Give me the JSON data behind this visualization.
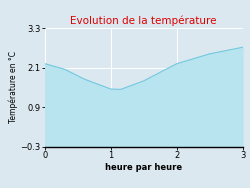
{
  "title": "Evolution de la température",
  "xlabel": "heure par heure",
  "ylabel": "Température en °C",
  "xlim": [
    0,
    3
  ],
  "ylim": [
    -0.3,
    3.3
  ],
  "yticks": [
    -0.3,
    0.9,
    2.1,
    3.3
  ],
  "xticks": [
    0,
    1,
    2,
    3
  ],
  "x": [
    0,
    0.3,
    0.6,
    1.0,
    1.15,
    1.5,
    2.0,
    2.5,
    3.0
  ],
  "y": [
    2.22,
    2.05,
    1.75,
    1.45,
    1.44,
    1.7,
    2.22,
    2.52,
    2.72
  ],
  "line_color": "#74c8de",
  "fill_color": "#b8e4f0",
  "background_color": "#dce8f0",
  "plot_bg_color": "#dce8f0",
  "title_color": "#dd0000",
  "title_fontsize": 7.5,
  "label_fontsize": 6.0,
  "tick_fontsize": 6.0
}
